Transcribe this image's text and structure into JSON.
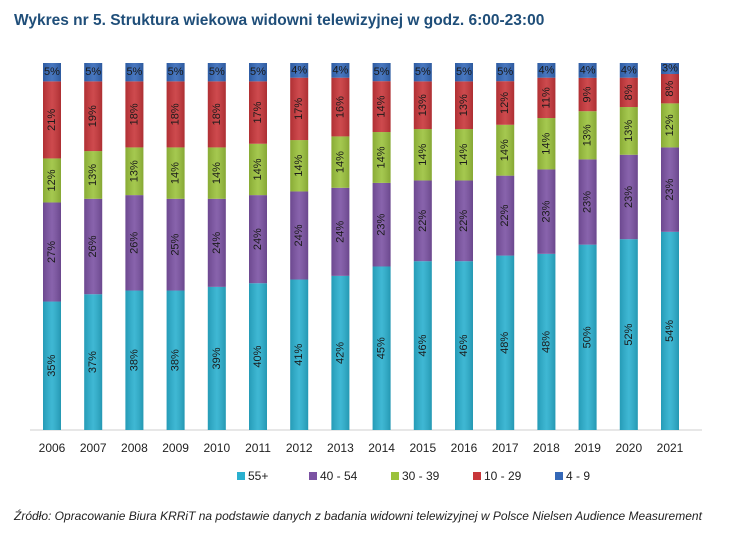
{
  "title": "Wykres nr 5. Struktura wiekowa widowni telewizyjnej w godz. 6:00-23:00",
  "source": "Źródło: Opracowanie Biura KRRiT na podstawie danych z badania widowni telewizyjnej w Polsce Nielsen Audience Measurement",
  "chart_data": {
    "type": "bar",
    "stacked": true,
    "percent_stacked": true,
    "categories": [
      "2006",
      "2007",
      "2008",
      "2009",
      "2010",
      "2011",
      "2012",
      "2013",
      "2014",
      "2015",
      "2016",
      "2017",
      "2018",
      "2019",
      "2020",
      "2021"
    ],
    "series": [
      {
        "name": "55+",
        "color": "#2ab0cf",
        "values": [
          35,
          37,
          38,
          38,
          39,
          40,
          41,
          42,
          45,
          46,
          46,
          48,
          48,
          50,
          52,
          54
        ]
      },
      {
        "name": "40 - 54",
        "color": "#7b52a3",
        "values": [
          27,
          26,
          26,
          25,
          24,
          24,
          24,
          24,
          23,
          22,
          22,
          22,
          23,
          23,
          23,
          23
        ]
      },
      {
        "name": "30 - 39",
        "color": "#9bc23c",
        "values": [
          12,
          13,
          13,
          14,
          14,
          14,
          14,
          14,
          14,
          14,
          14,
          14,
          14,
          13,
          13,
          12
        ]
      },
      {
        "name": "10 - 29",
        "color": "#c8363a",
        "values": [
          21,
          19,
          18,
          18,
          18,
          17,
          17,
          16,
          14,
          13,
          13,
          12,
          11,
          9,
          8,
          8
        ]
      },
      {
        "name": "4 - 9",
        "color": "#3468b8",
        "values": [
          5,
          5,
          5,
          5,
          5,
          5,
          4,
          4,
          5,
          5,
          5,
          5,
          4,
          4,
          4,
          3
        ]
      }
    ],
    "legend_position": "bottom",
    "ylim": [
      0,
      100
    ]
  }
}
